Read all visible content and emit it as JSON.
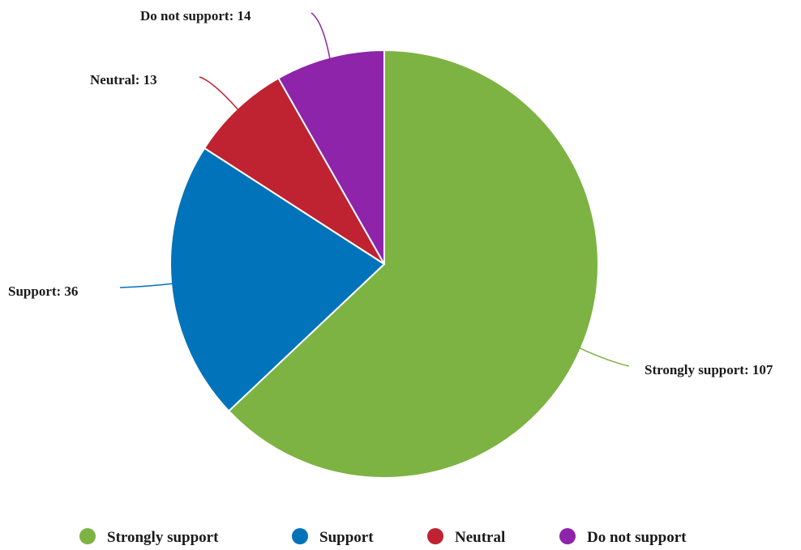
{
  "chart_data": {
    "type": "pie",
    "categories": [
      "Strongly support",
      "Support",
      "Neutral",
      "Do not support"
    ],
    "values": [
      107,
      36,
      13,
      14
    ],
    "colors": [
      "#7cb342",
      "#0073bb",
      "#bf2230",
      "#8e24aa"
    ],
    "data_labels": [
      "Strongly support: 107",
      "Support: 36",
      "Neutral: 13",
      "Do not support: 14"
    ],
    "start_angle_deg": 0,
    "direction": "clockwise",
    "legend": {
      "placement": "bottom",
      "entries": [
        "Strongly support",
        "Support",
        "Neutral",
        "Do not support"
      ]
    },
    "title": "",
    "xlabel": "",
    "ylabel": ""
  }
}
